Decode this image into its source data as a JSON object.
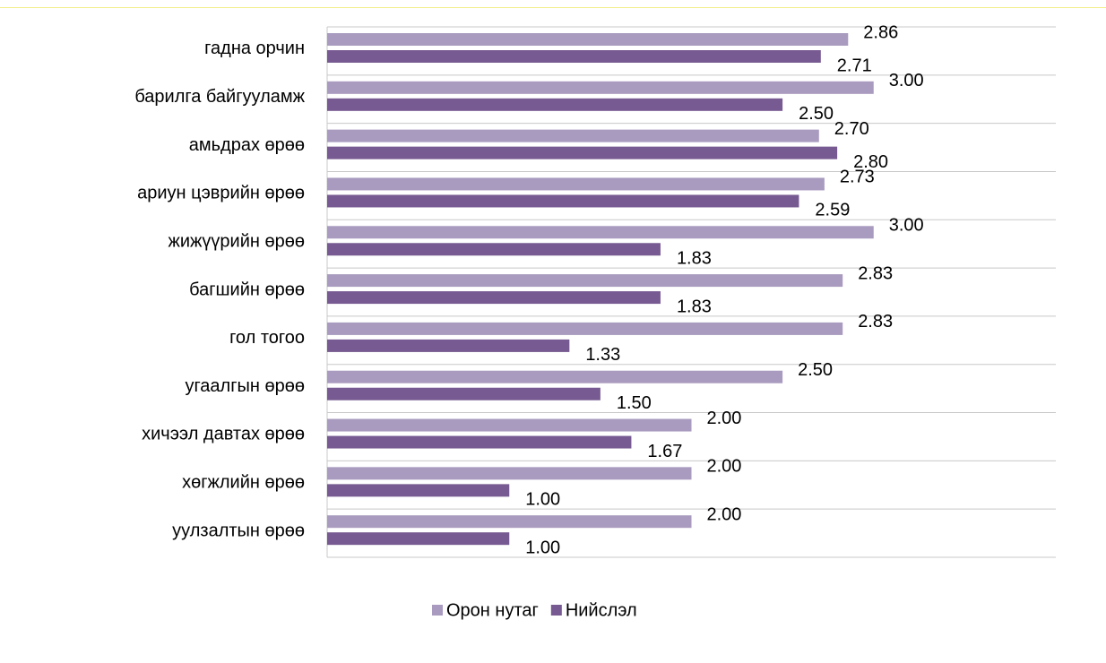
{
  "chart_data": {
    "type": "bar",
    "orientation": "horizontal",
    "categories": [
      "гадна орчин",
      "барилга байгууламж",
      "амьдрах өрөө",
      "ариун цэврийн өрөө",
      "жижүүрийн өрөө",
      "багшийн өрөө",
      "гол тогоо",
      "угаалгын өрөө",
      "хичээл давтах өрөө",
      "хөгжлийн өрөө",
      "уулзалтын өрөө"
    ],
    "series": [
      {
        "name": "Орон нутаг",
        "color": "#a99bbf",
        "values": [
          2.86,
          3,
          2.7,
          2.73,
          3,
          2.83,
          2.83,
          2.5,
          2,
          2,
          2
        ],
        "value_labels": [
          "2.86",
          "3.00",
          "2.70",
          "2.73",
          "3.00",
          "2.83",
          "2.83",
          "2.50",
          "2.00",
          "2.00",
          "2.00"
        ]
      },
      {
        "name": "Нийслэл",
        "color": "#775a91",
        "values": [
          2.71,
          2.5,
          2.8,
          2.59,
          1.83,
          1.83,
          1.33,
          1.5,
          1.67,
          1,
          1
        ],
        "value_labels": [
          "2.71",
          "2.50",
          "2.80",
          "2.59",
          "1.83",
          "1.83",
          "1.33",
          "1.50",
          "1.67",
          "1.00",
          "1.00"
        ]
      }
    ],
    "xlim": [
      0,
      4
    ],
    "legend": "bottom"
  }
}
